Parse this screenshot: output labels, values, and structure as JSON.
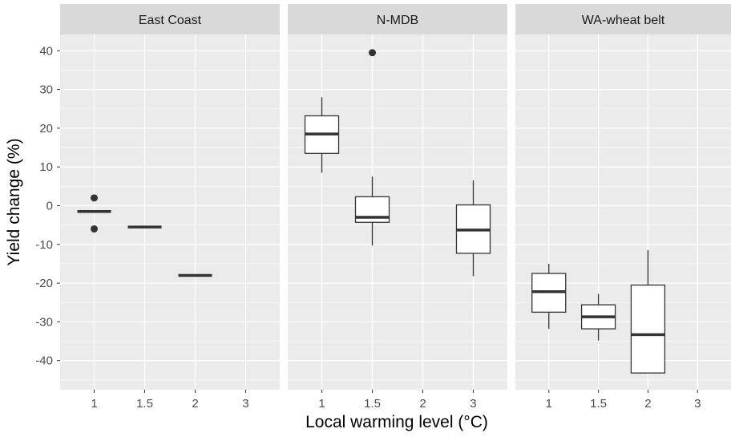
{
  "chart_data": {
    "type": "boxplot",
    "xlabel": "Local warming level (°C)",
    "ylabel": "Yield change (%)",
    "ylim": [
      -48,
      45
    ],
    "y_ticks": [
      40,
      30,
      20,
      10,
      0,
      -10,
      -20,
      -30,
      -40
    ],
    "x_categories": [
      "1",
      "1.5",
      "2",
      "3"
    ],
    "grid": true,
    "colors": {
      "panel_bg": "#ebebeb",
      "strip_bg": "#d9d9d9",
      "grid": "#ffffff",
      "box_line": "#333333",
      "box_fill": "#ffffff"
    },
    "panels": [
      {
        "name": "East Coast",
        "boxes": [
          {
            "x": "1",
            "lower": -1.5,
            "q1": -1.5,
            "median": -1.5,
            "q3": -1.5,
            "upper": -1.5,
            "outliers": [
              2,
              -6
            ]
          },
          {
            "x": "1.5",
            "lower": -5.5,
            "q1": -5.5,
            "median": -5.5,
            "q3": -5.5,
            "upper": -5.5,
            "outliers": []
          },
          {
            "x": "2",
            "lower": -18,
            "q1": -18,
            "median": -18,
            "q3": -18,
            "upper": -18,
            "outliers": []
          }
        ]
      },
      {
        "name": "N-MDB",
        "boxes": [
          {
            "x": "1",
            "lower": 8.5,
            "q1": 13.5,
            "median": 18.5,
            "q3": 23.2,
            "upper": 28,
            "outliers": []
          },
          {
            "x": "1.5",
            "lower": -10.3,
            "q1": -4.3,
            "median": -3,
            "q3": 2.3,
            "upper": 7.5,
            "outliers": [
              39.5
            ]
          },
          {
            "x": "3",
            "lower": -18.2,
            "q1": -12.3,
            "median": -6.3,
            "q3": 0.2,
            "upper": 6.5,
            "outliers": []
          }
        ]
      },
      {
        "name": "WA-wheat belt",
        "boxes": [
          {
            "x": "1",
            "lower": -31.8,
            "q1": -27.5,
            "median": -22.2,
            "q3": -17.5,
            "upper": -15,
            "outliers": []
          },
          {
            "x": "1.5",
            "lower": -34.8,
            "q1": -31.8,
            "median": -28.7,
            "q3": -25.6,
            "upper": -22.8,
            "outliers": []
          },
          {
            "x": "2",
            "lower": -43.2,
            "q1": -43.2,
            "median": -33.3,
            "q3": -20.5,
            "upper": -11.5,
            "outliers": []
          }
        ]
      }
    ]
  }
}
